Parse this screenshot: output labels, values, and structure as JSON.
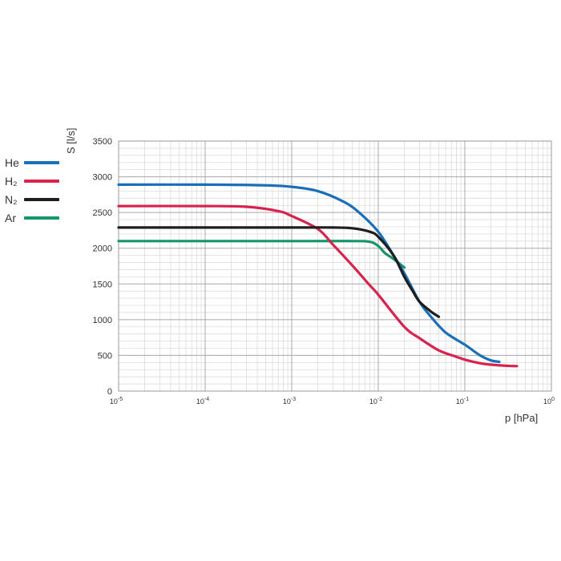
{
  "chart_data": {
    "type": "line",
    "title": "",
    "xlabel": "p [hPa]",
    "ylabel": "S [l/s]",
    "x_scale": "log",
    "xlim": [
      1e-05,
      1
    ],
    "ylim": [
      0,
      3500
    ],
    "x_ticks": [
      {
        "value": 1e-05,
        "label": "10-5"
      },
      {
        "value": 0.0001,
        "label": "10-4"
      },
      {
        "value": 0.001,
        "label": "10-3"
      },
      {
        "value": 0.01,
        "label": "10-2"
      },
      {
        "value": 0.1,
        "label": "10-1"
      },
      {
        "value": 1,
        "label": "100"
      }
    ],
    "y_ticks": [
      0,
      500,
      1000,
      1500,
      2000,
      2500,
      3000,
      3500
    ],
    "grid": true,
    "legend_position": "left",
    "series": [
      {
        "name": "He",
        "color": "#1a6fba",
        "x": [
          1e-05,
          0.0001,
          0.0005,
          0.001,
          0.002,
          0.004,
          0.006,
          0.01,
          0.015,
          0.02,
          0.03,
          0.04,
          0.06,
          0.1,
          0.15,
          0.2,
          0.25
        ],
        "y": [
          2890,
          2890,
          2880,
          2860,
          2800,
          2650,
          2500,
          2230,
          1900,
          1650,
          1250,
          1050,
          820,
          650,
          500,
          430,
          410
        ]
      },
      {
        "name": "H₂",
        "color": "#d9234f",
        "x": [
          1e-05,
          0.0001,
          0.0003,
          0.0007,
          0.001,
          0.002,
          0.003,
          0.005,
          0.008,
          0.01,
          0.02,
          0.03,
          0.05,
          0.08,
          0.1,
          0.15,
          0.2,
          0.3,
          0.4
        ],
        "y": [
          2590,
          2590,
          2580,
          2520,
          2450,
          2270,
          2050,
          1760,
          1480,
          1350,
          900,
          740,
          570,
          480,
          440,
          390,
          370,
          355,
          350
        ]
      },
      {
        "name": "N₂",
        "color": "#1e1e1e",
        "x": [
          1e-05,
          0.001,
          0.003,
          0.005,
          0.008,
          0.01,
          0.015,
          0.02,
          0.025,
          0.03,
          0.04,
          0.05
        ],
        "y": [
          2290,
          2290,
          2290,
          2280,
          2230,
          2160,
          1900,
          1600,
          1400,
          1250,
          1120,
          1040
        ]
      },
      {
        "name": "Ar",
        "color": "#16956a",
        "x": [
          1e-05,
          0.001,
          0.005,
          0.008,
          0.01,
          0.012,
          0.015,
          0.02
        ],
        "y": [
          2100,
          2100,
          2100,
          2090,
          2030,
          1930,
          1850,
          1730
        ]
      }
    ]
  }
}
